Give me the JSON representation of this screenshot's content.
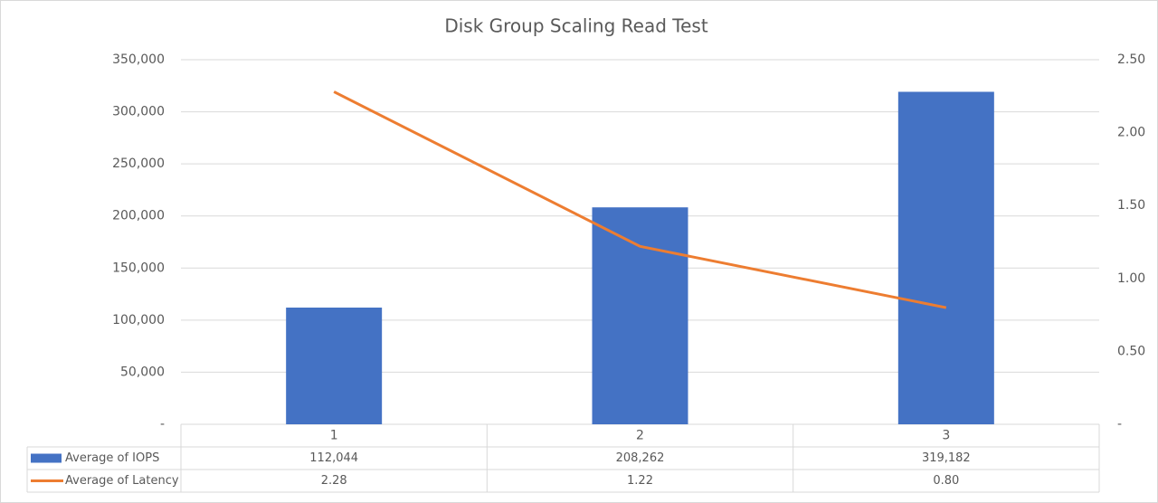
{
  "chart_data": {
    "type": "bar-line",
    "title": "Disk Group Scaling Read Test",
    "categories": [
      "1",
      "2",
      "3"
    ],
    "series": [
      {
        "name": "Average of IOPS",
        "type": "bar",
        "color": "#4472c4",
        "values": [
          112044,
          208262,
          319182
        ],
        "value_labels": [
          "112,044",
          "208,262",
          "319,182"
        ]
      },
      {
        "name": "Average of Latency",
        "type": "line",
        "color": "#ed7d31",
        "axis": "y2",
        "values": [
          2.28,
          1.22,
          0.8
        ],
        "value_labels": [
          "2.28",
          "1.22",
          "0.80"
        ]
      }
    ],
    "ylim": [
      0,
      350000
    ],
    "yticks": [
      {
        "value": 0,
        "label": "-"
      },
      {
        "value": 50000,
        "label": "50,000"
      },
      {
        "value": 100000,
        "label": "100,000"
      },
      {
        "value": 150000,
        "label": "150,000"
      },
      {
        "value": 200000,
        "label": "200,000"
      },
      {
        "value": 250000,
        "label": "250,000"
      },
      {
        "value": 300000,
        "label": "300,000"
      },
      {
        "value": 350000,
        "label": "350,000"
      }
    ],
    "y2lim": [
      0,
      2.5
    ],
    "y2ticks": [
      {
        "value": 0,
        "label": "-"
      },
      {
        "value": 0.5,
        "label": "0.50"
      },
      {
        "value": 1,
        "label": "1.00"
      },
      {
        "value": 1.5,
        "label": "1.50"
      },
      {
        "value": 2,
        "label": "2.00"
      },
      {
        "value": 2.5,
        "label": "2.50"
      }
    ],
    "grid": true
  }
}
